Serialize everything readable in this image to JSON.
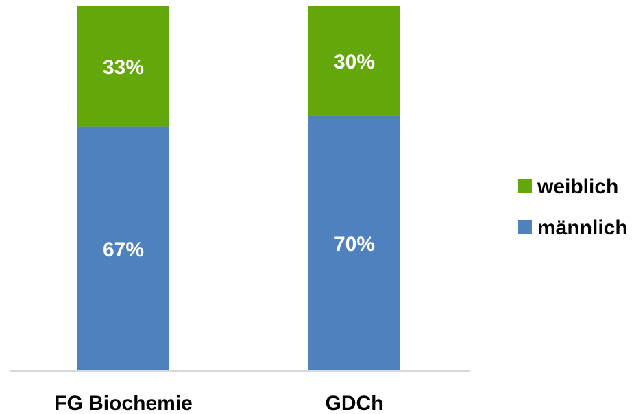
{
  "chart_data": {
    "type": "bar",
    "stacked": true,
    "categories": [
      "FG Biochemie",
      "GDCh"
    ],
    "series": [
      {
        "name": "männlich",
        "values": [
          67,
          70
        ],
        "labels": [
          "67%",
          "70%"
        ],
        "color": "#4f81bd"
      },
      {
        "name": "weiblich",
        "values": [
          33,
          30
        ],
        "labels": [
          "33%",
          "30%"
        ],
        "color": "#63a70a"
      }
    ],
    "ylim": [
      0,
      100
    ],
    "unit": "%",
    "grid": false,
    "legend": {
      "placement": "right",
      "order": [
        "weiblich",
        "männlich"
      ]
    },
    "axis_color": "#d9d9d9"
  }
}
